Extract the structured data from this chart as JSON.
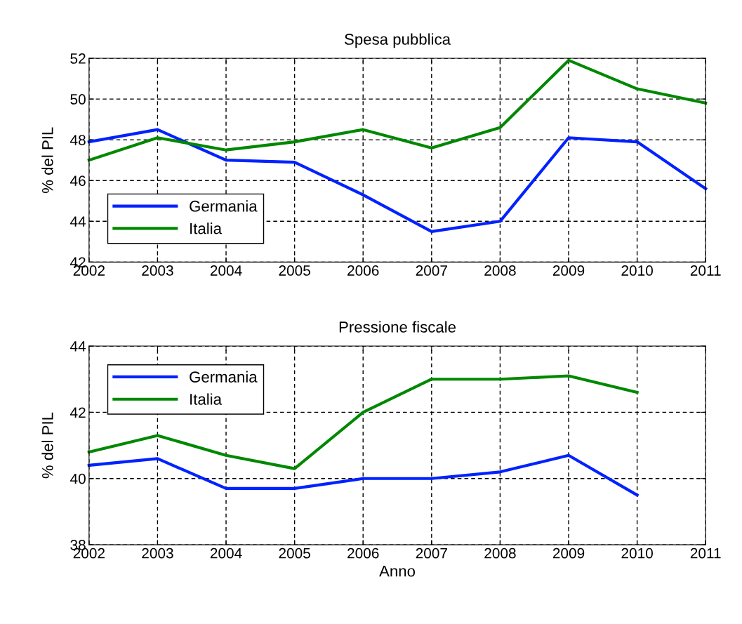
{
  "chart_data": [
    {
      "type": "line",
      "title": "Spesa pubblica",
      "ylabel": "% del PIL",
      "x": [
        2002,
        2003,
        2004,
        2005,
        2006,
        2007,
        2008,
        2009,
        2010,
        2011
      ],
      "series": [
        {
          "name": "Germania",
          "color": "#0022ff",
          "values": [
            47.9,
            48.5,
            47.0,
            46.9,
            45.3,
            43.5,
            44.0,
            48.1,
            47.9,
            45.6
          ]
        },
        {
          "name": "Italia",
          "color": "#008800",
          "values": [
            47.0,
            48.1,
            47.5,
            47.9,
            48.5,
            47.6,
            48.6,
            51.9,
            50.5,
            49.8
          ]
        }
      ],
      "xlim": [
        2002,
        2011
      ],
      "xticks": [
        2002,
        2003,
        2004,
        2005,
        2006,
        2007,
        2008,
        2009,
        2010,
        2011
      ],
      "ylim": [
        42,
        52
      ],
      "yticks": [
        42,
        44,
        46,
        48,
        50,
        52
      ],
      "grid": true,
      "legend": "bottom left",
      "marker": "none",
      "line_style": "solid"
    },
    {
      "type": "line",
      "title": "Pressione fiscale",
      "xlabel": "Anno",
      "ylabel": "% del PIL",
      "x": [
        2002,
        2003,
        2004,
        2005,
        2006,
        2007,
        2008,
        2009,
        2010
      ],
      "series": [
        {
          "name": "Germania",
          "color": "#0022ff",
          "values": [
            40.4,
            40.6,
            39.7,
            39.7,
            40.0,
            40.0,
            40.2,
            40.7,
            39.5
          ]
        },
        {
          "name": "Italia",
          "color": "#008800",
          "values": [
            40.8,
            41.3,
            40.7,
            40.3,
            42.0,
            43.0,
            43.0,
            43.1,
            42.6
          ]
        }
      ],
      "xlim": [
        2002,
        2011
      ],
      "xticks": [
        2002,
        2003,
        2004,
        2005,
        2006,
        2007,
        2008,
        2009,
        2010,
        2011
      ],
      "ylim": [
        38,
        44
      ],
      "yticks": [
        38,
        40,
        42,
        44
      ],
      "grid": true,
      "legend": "top left",
      "marker": "none",
      "line_style": "solid"
    }
  ]
}
